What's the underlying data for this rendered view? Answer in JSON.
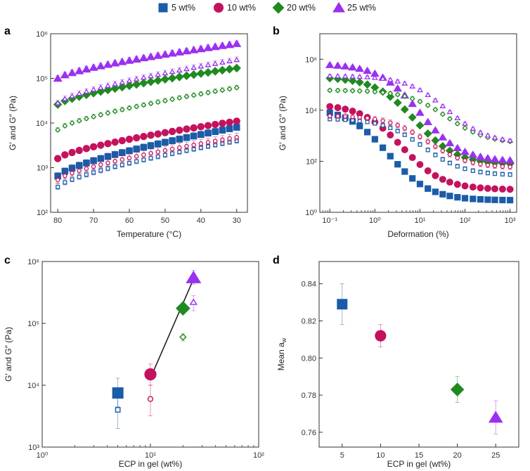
{
  "legend": [
    {
      "label": "5 wt%",
      "marker": "square",
      "color": "#1a5ca8"
    },
    {
      "label": "10 wt%",
      "marker": "circle",
      "color": "#c4125d"
    },
    {
      "label": "20 wt%",
      "marker": "diamond",
      "color": "#1f8a1f"
    },
    {
      "label": "25 wt%",
      "marker": "triangle",
      "color": "#9b30f0"
    }
  ],
  "chart_data": [
    {
      "panel": "a",
      "type": "scatter",
      "xlabel": "Temperature (°C)",
      "ylabel": "G′ and G″ (Pa)",
      "xscale": "linear",
      "xlim": [
        82,
        27
      ],
      "x_reversed": true,
      "yscale": "log",
      "ylim": [
        100,
        1000000
      ],
      "xticks": [
        80,
        70,
        60,
        50,
        40,
        30
      ],
      "yticks": [
        {
          "v": 100,
          "t": "10²"
        },
        {
          "v": 1000,
          "t": "10³"
        },
        {
          "v": 10000,
          "t": "10⁴"
        },
        {
          "v": 100000,
          "t": "10⁵"
        },
        {
          "v": 1000000,
          "t": "10⁶"
        }
      ],
      "x": [
        80,
        78,
        76,
        74,
        72,
        70,
        68,
        66,
        64,
        62,
        60,
        58,
        56,
        54,
        52,
        50,
        48,
        46,
        44,
        42,
        40,
        38,
        36,
        34,
        32,
        30
      ],
      "series": [
        {
          "name": "5 wt% G′",
          "marker": "square",
          "filled": true,
          "y_start": 650,
          "y_end": 8000,
          "err": 0.12
        },
        {
          "name": "10 wt% G′",
          "marker": "circle",
          "filled": true,
          "y_start": 1600,
          "y_end": 11000,
          "err": 0.1
        },
        {
          "name": "20 wt% G′",
          "marker": "diamond",
          "filled": true,
          "y_start": 26000,
          "y_end": 170000,
          "err": 0.05
        },
        {
          "name": "25 wt% G′",
          "marker": "triangle",
          "filled": true,
          "y_start": 100000,
          "y_end": 600000,
          "err": 0.1
        },
        {
          "name": "5 wt% G″",
          "marker": "square",
          "filled": false,
          "y_start": 370,
          "y_end": 4000,
          "err": 0.12
        },
        {
          "name": "10 wt% G″",
          "marker": "circle",
          "filled": false,
          "y_start": 530,
          "y_end": 4800,
          "err": 0.15
        },
        {
          "name": "20 wt% G″",
          "marker": "diamond",
          "filled": false,
          "y_start": 7000,
          "y_end": 62000,
          "err": 0.08
        },
        {
          "name": "25 wt% G″",
          "marker": "triangle",
          "filled": false,
          "y_start": 28000,
          "y_end": 260000,
          "err": 0.1
        }
      ]
    },
    {
      "panel": "b",
      "type": "scatter",
      "xlabel": "Deformation (%)",
      "ylabel": "G′ and G″ (Pa)",
      "xscale": "log",
      "xlim": [
        0.06,
        1400
      ],
      "yscale": "log",
      "ylim": [
        1,
        10000000
      ],
      "xticks": [
        {
          "v": 0.1,
          "t": "10⁻¹"
        },
        {
          "v": 1,
          "t": "10⁰"
        },
        {
          "v": 10,
          "t": "10¹"
        },
        {
          "v": 100,
          "t": "10²"
        },
        {
          "v": 1000,
          "t": "10³"
        }
      ],
      "yticks": [
        {
          "v": 1,
          "t": "10⁰"
        },
        {
          "v": 100,
          "t": "10²"
        },
        {
          "v": 10000,
          "t": "10⁴"
        },
        {
          "v": 1000000,
          "t": "10⁶"
        }
      ],
      "x": [
        0.1,
        0.15,
        0.22,
        0.32,
        0.46,
        0.68,
        1,
        1.5,
        2.2,
        3.2,
        4.6,
        6.8,
        10,
        15,
        22,
        32,
        46,
        68,
        100,
        150,
        220,
        320,
        460,
        680,
        1000
      ],
      "series": [
        {
          "name": "5 wt% G′",
          "marker": "square",
          "filled": true,
          "plateau": 8000,
          "end": 3,
          "x_break": 2,
          "sharp": 1.0,
          "err": 0.1
        },
        {
          "name": "10 wt% G′",
          "marker": "circle",
          "filled": true,
          "plateau": 14000,
          "end": 8,
          "x_break": 4,
          "sharp": 1.0,
          "err": 0.1
        },
        {
          "name": "20 wt% G′",
          "marker": "diamond",
          "filled": true,
          "plateau": 180000,
          "end": 80,
          "x_break": 8,
          "sharp": 1.0,
          "err": 0.12
        },
        {
          "name": "25 wt% G′",
          "marker": "triangle",
          "filled": true,
          "plateau": 600000,
          "end": 110,
          "x_break": 10,
          "sharp": 1.0,
          "err": 0.1
        },
        {
          "name": "5 wt% G″",
          "marker": "square",
          "filled": false,
          "plateau": 4500,
          "end": 30,
          "x_break": 12,
          "sharp": 1.0,
          "err": 0.15
        },
        {
          "name": "10 wt% G″",
          "marker": "circle",
          "filled": false,
          "plateau": 6000,
          "end": 60,
          "x_break": 15,
          "sharp": 1.0,
          "err": 0.2
        },
        {
          "name": "20 wt% G″",
          "marker": "diamond",
          "filled": false,
          "plateau": 60000,
          "end": 600,
          "x_break": 40,
          "sharp": 1.0,
          "err": 0.12
        },
        {
          "name": "25 wt% G″",
          "marker": "triangle",
          "filled": false,
          "plateau": 220000,
          "end": 650,
          "x_break": 40,
          "sharp": 1.0,
          "err": 0.1
        }
      ]
    },
    {
      "panel": "c",
      "type": "scatter",
      "xlabel": "ECP in gel (wt%)",
      "ylabel": "G′ and G″ (Pa)",
      "xscale": "log",
      "xlim": [
        1,
        100
      ],
      "yscale": "log",
      "ylim": [
        1000,
        1000000
      ],
      "xticks": [
        {
          "v": 1,
          "t": "10⁰"
        },
        {
          "v": 10,
          "t": "10¹"
        },
        {
          "v": 100,
          "t": "10²"
        }
      ],
      "yticks": [
        {
          "v": 1000,
          "t": "10³"
        },
        {
          "v": 10000,
          "t": "10⁴"
        },
        {
          "v": 100000,
          "t": "10⁵"
        },
        {
          "v": 1000000,
          "t": "10⁶"
        }
      ],
      "fit_line": {
        "x": [
          10,
          25
        ],
        "y": [
          13000,
          520000
        ]
      },
      "points": [
        {
          "x": 5,
          "y": 7500,
          "lo": 4500,
          "hi": 13000,
          "marker": "square",
          "filled": true,
          "name": "5 wt% G′"
        },
        {
          "x": 10,
          "y": 15000,
          "lo": 10000,
          "hi": 22000,
          "marker": "circle",
          "filled": true,
          "name": "10 wt% G′"
        },
        {
          "x": 20,
          "y": 175000,
          "lo": 150000,
          "hi": 200000,
          "marker": "diamond",
          "filled": true,
          "name": "20 wt% G′"
        },
        {
          "x": 25,
          "y": 550000,
          "lo": 430000,
          "hi": 720000,
          "marker": "triangle",
          "filled": true,
          "name": "25 wt% G′"
        },
        {
          "x": 5,
          "y": 4000,
          "lo": 2000,
          "hi": 8000,
          "marker": "square",
          "filled": false,
          "name": "5 wt% G″"
        },
        {
          "x": 10,
          "y": 6000,
          "lo": 3200,
          "hi": 10000,
          "marker": "circle",
          "filled": false,
          "name": "10 wt% G″"
        },
        {
          "x": 20,
          "y": 60000,
          "lo": 52000,
          "hi": 68000,
          "marker": "diamond",
          "filled": false,
          "name": "20 wt% G″"
        },
        {
          "x": 25,
          "y": 220000,
          "lo": 160000,
          "hi": 280000,
          "marker": "triangle",
          "filled": false,
          "name": "25 wt% G″"
        }
      ]
    },
    {
      "panel": "d",
      "type": "scatter",
      "xlabel": "ECP in gel (wt%)",
      "ylabel": "Mean a",
      "ylabel_sub": "w",
      "xscale": "linear",
      "xlim": [
        2,
        28
      ],
      "yscale": "linear",
      "ylim": [
        0.752,
        0.852
      ],
      "xticks": [
        {
          "v": 5,
          "t": "5"
        },
        {
          "v": 10,
          "t": "10"
        },
        {
          "v": 15,
          "t": "15"
        },
        {
          "v": 20,
          "t": "20"
        },
        {
          "v": 25,
          "t": "25"
        }
      ],
      "yticks": [
        {
          "v": 0.76,
          "t": "0.76"
        },
        {
          "v": 0.78,
          "t": "0.78"
        },
        {
          "v": 0.8,
          "t": "0.80"
        },
        {
          "v": 0.82,
          "t": "0.82"
        },
        {
          "v": 0.84,
          "t": "0.84"
        }
      ],
      "points": [
        {
          "x": 5,
          "y": 0.829,
          "err": 0.011,
          "marker": "square",
          "filled": true,
          "name": "5 wt%"
        },
        {
          "x": 10,
          "y": 0.812,
          "err": 0.006,
          "marker": "circle",
          "filled": true,
          "name": "10 wt%"
        },
        {
          "x": 20,
          "y": 0.783,
          "err": 0.007,
          "marker": "diamond",
          "filled": true,
          "name": "20 wt%"
        },
        {
          "x": 25,
          "y": 0.768,
          "err": 0.009,
          "marker": "triangle",
          "filled": true,
          "name": "25 wt%"
        }
      ]
    }
  ]
}
